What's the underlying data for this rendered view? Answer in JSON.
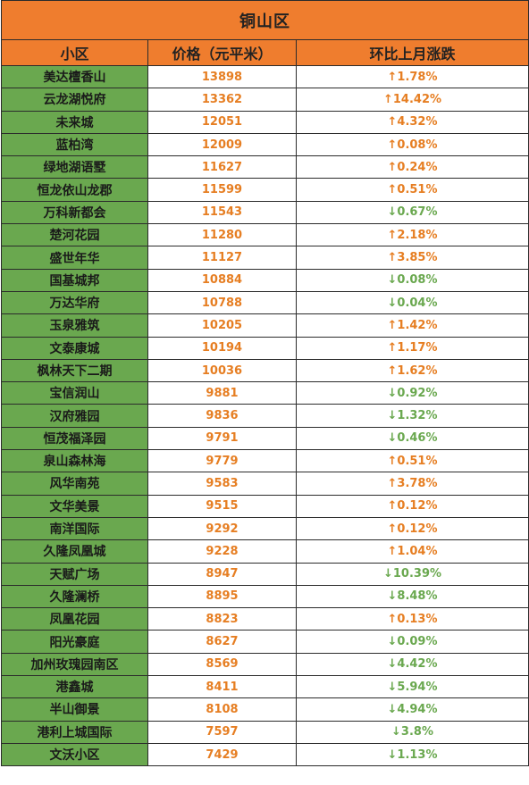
{
  "title": "铜山区",
  "headers": {
    "name": "小区",
    "price": "价格（元平米）",
    "change": "环比上月涨跌"
  },
  "colors": {
    "orange": "#ef7d2e",
    "green": "#6aa84f",
    "up_text": "#e67e22",
    "down_text": "#6aa84f"
  },
  "rows": [
    {
      "name": "美达檀香山",
      "price": "13898",
      "change": "↑1.78%",
      "dir": "up"
    },
    {
      "name": "云龙湖悦府",
      "price": "13362",
      "change": "↑14.42%",
      "dir": "up"
    },
    {
      "name": "未来城",
      "price": "12051",
      "change": "↑4.32%",
      "dir": "up"
    },
    {
      "name": "蓝柏湾",
      "price": "12009",
      "change": "↑0.08%",
      "dir": "up"
    },
    {
      "name": "绿地湖语墅",
      "price": "11627",
      "change": "↑0.24%",
      "dir": "up"
    },
    {
      "name": "恒龙依山龙郡",
      "price": "11599",
      "change": "↑0.51%",
      "dir": "up"
    },
    {
      "name": "万科新都会",
      "price": "11543",
      "change": "↓0.67%",
      "dir": "down"
    },
    {
      "name": "楚河花园",
      "price": "11280",
      "change": "↑2.18%",
      "dir": "up"
    },
    {
      "name": "盛世年华",
      "price": "11127",
      "change": "↑3.85%",
      "dir": "up"
    },
    {
      "name": "国基城邦",
      "price": "10884",
      "change": "↓0.08%",
      "dir": "down"
    },
    {
      "name": "万达华府",
      "price": "10788",
      "change": "↓0.04%",
      "dir": "down"
    },
    {
      "name": "玉泉雅筑",
      "price": "10205",
      "change": "↑1.42%",
      "dir": "up"
    },
    {
      "name": "文泰康城",
      "price": "10194",
      "change": "↑1.17%",
      "dir": "up"
    },
    {
      "name": "枫林天下二期",
      "price": "10036",
      "change": "↑1.62%",
      "dir": "up"
    },
    {
      "name": "宝信润山",
      "price": "9881",
      "change": "↓0.92%",
      "dir": "down"
    },
    {
      "name": "汉府雅园",
      "price": "9836",
      "change": "↓1.32%",
      "dir": "down"
    },
    {
      "name": "恒茂福泽园",
      "price": "9791",
      "change": "↓0.46%",
      "dir": "down"
    },
    {
      "name": "泉山森林海",
      "price": "9779",
      "change": "↑0.51%",
      "dir": "up"
    },
    {
      "name": "风华南苑",
      "price": "9583",
      "change": "↑3.78%",
      "dir": "up"
    },
    {
      "name": "文华美景",
      "price": "9515",
      "change": "↑0.12%",
      "dir": "up"
    },
    {
      "name": "南洋国际",
      "price": "9292",
      "change": "↑0.12%",
      "dir": "up"
    },
    {
      "name": "久隆凤凰城",
      "price": "9228",
      "change": "↑1.04%",
      "dir": "up"
    },
    {
      "name": "天赋广场",
      "price": "8947",
      "change": "↓10.39%",
      "dir": "down"
    },
    {
      "name": "久隆澜桥",
      "price": "8895",
      "change": "↓8.48%",
      "dir": "down"
    },
    {
      "name": "凤凰花园",
      "price": "8823",
      "change": "↑0.13%",
      "dir": "up"
    },
    {
      "name": "阳光豪庭",
      "price": "8627",
      "change": "↓0.09%",
      "dir": "down"
    },
    {
      "name": "加州玫瑰园南区",
      "price": "8569",
      "change": "↓4.42%",
      "dir": "down"
    },
    {
      "name": "港鑫城",
      "price": "8411",
      "change": "↓5.94%",
      "dir": "down"
    },
    {
      "name": "半山御景",
      "price": "8108",
      "change": "↓4.94%",
      "dir": "down"
    },
    {
      "name": "港利上城国际",
      "price": "7597",
      "change": "↓3.8%",
      "dir": "down"
    },
    {
      "name": "文沃小区",
      "price": "7429",
      "change": "↓1.13%",
      "dir": "down"
    }
  ]
}
